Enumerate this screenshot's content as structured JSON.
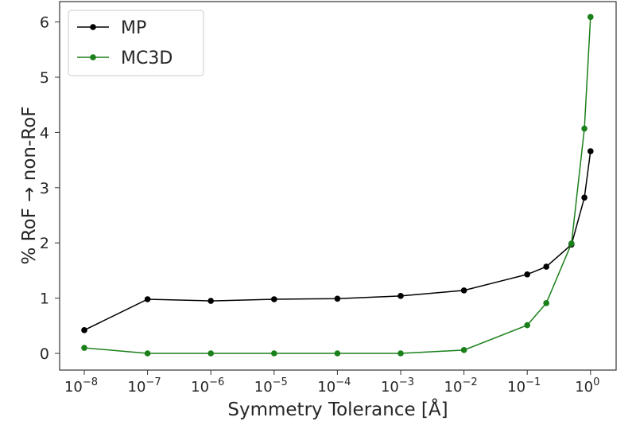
{
  "chart_data": {
    "type": "line",
    "title": "",
    "xlabel": "Symmetry Tolerance [Å]",
    "ylabel": "% RoF → non-RoF",
    "xscale": "log",
    "xlim": [
      1e-08,
      1
    ],
    "ylim": [
      -0.15,
      6.3
    ],
    "x_tick_labels": [
      {
        "value": 1e-08,
        "base": "10",
        "exp": "−8"
      },
      {
        "value": 1e-07,
        "base": "10",
        "exp": "−7"
      },
      {
        "value": 1e-06,
        "base": "10",
        "exp": "−6"
      },
      {
        "value": 1e-05,
        "base": "10",
        "exp": "−5"
      },
      {
        "value": 0.0001,
        "base": "10",
        "exp": "−4"
      },
      {
        "value": 0.001,
        "base": "10",
        "exp": "−3"
      },
      {
        "value": 0.01,
        "base": "10",
        "exp": "−2"
      },
      {
        "value": 0.1,
        "base": "10",
        "exp": "−1"
      },
      {
        "value": 1,
        "base": "10",
        "exp": "0"
      }
    ],
    "y_ticks": [
      0,
      1,
      2,
      3,
      4,
      5,
      6
    ],
    "y_tick_labels": [
      "0",
      "1",
      "2",
      "3",
      "4",
      "5",
      "6"
    ],
    "grid": false,
    "legend_position": "top-left",
    "x": [
      1e-08,
      1e-07,
      1e-06,
      1e-05,
      0.0001,
      0.001,
      0.01,
      0.1,
      0.2,
      0.5,
      0.8,
      1.0
    ],
    "series": [
      {
        "name": "MP",
        "color": "#000000",
        "values": [
          0.42,
          0.98,
          0.95,
          0.98,
          0.99,
          1.04,
          1.14,
          1.43,
          1.57,
          1.97,
          2.82,
          3.66
        ]
      },
      {
        "name": "MC3D",
        "color": "#1a801a",
        "values": [
          0.1,
          0.0,
          0.0,
          0.0,
          0.0,
          0.0,
          0.06,
          0.51,
          0.91,
          1.99,
          4.07,
          6.09
        ]
      }
    ]
  }
}
